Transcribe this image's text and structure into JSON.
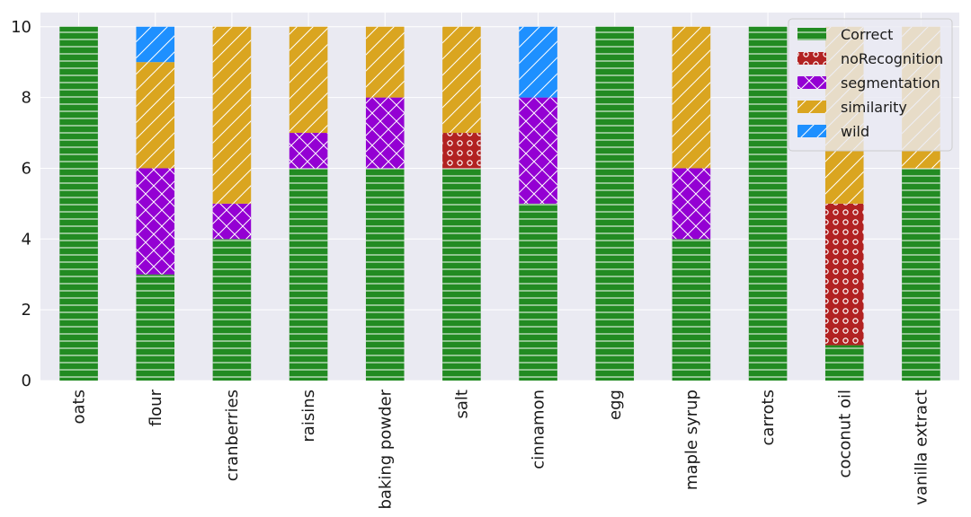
{
  "chart_data": {
    "type": "bar",
    "stacked": true,
    "title": "",
    "xlabel": "",
    "ylabel": "",
    "ylim": [
      0,
      10.4
    ],
    "yticks": [
      0,
      2,
      4,
      6,
      8,
      10
    ],
    "grid": true,
    "legend_position": "top-right",
    "categories": [
      "oats",
      "flour",
      "cranberries",
      "raisins",
      "baking powder",
      "salt",
      "cinnamon",
      "egg",
      "maple syrup",
      "carrots",
      "coconut oil",
      "vanilla extract"
    ],
    "series": [
      {
        "name": "Correct",
        "color": "#228B22",
        "hatch": "horizontal-lines",
        "values": [
          10,
          3,
          4,
          6,
          6,
          6,
          5,
          10,
          4,
          10,
          1,
          6
        ]
      },
      {
        "name": "noRecognition",
        "color": "#B22222",
        "hatch": "circles",
        "values": [
          0,
          0,
          0,
          0,
          0,
          1,
          0,
          0,
          0,
          0,
          4,
          0
        ]
      },
      {
        "name": "segmentation",
        "color": "#9400D3",
        "hatch": "crosshatch",
        "values": [
          0,
          3,
          1,
          1,
          2,
          0,
          3,
          0,
          2,
          0,
          0,
          0
        ]
      },
      {
        "name": "similarity",
        "color": "#DAA520",
        "hatch": "forward-diagonal",
        "values": [
          0,
          3,
          5,
          3,
          2,
          3,
          0,
          0,
          4,
          0,
          5,
          4
        ]
      },
      {
        "name": "wild",
        "color": "#1E90FF",
        "hatch": "forward-diagonal",
        "values": [
          0,
          1,
          0,
          0,
          0,
          0,
          2,
          0,
          0,
          0,
          0,
          0
        ]
      }
    ]
  }
}
